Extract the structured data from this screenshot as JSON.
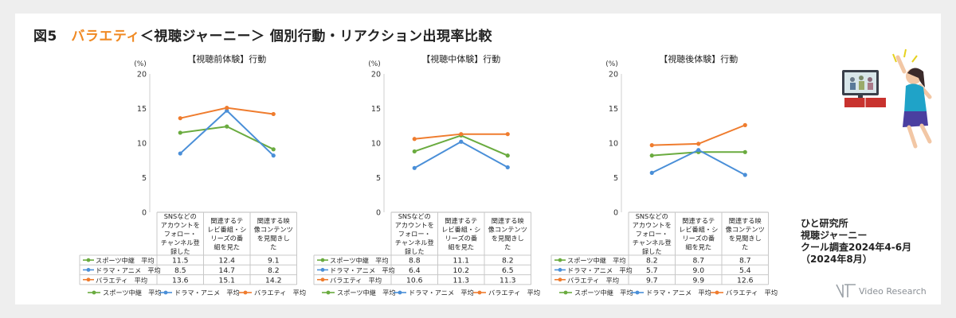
{
  "page_title": {
    "prefix": "図5",
    "accent": "バラエティ",
    "rest": "＜視聴ジャーニー＞ 個別行動・リアクション出現率比較"
  },
  "colors": {
    "sports": "#6aab3f",
    "drama": "#4a8fd8",
    "variety": "#ef7c2e",
    "accent": "#f08a24"
  },
  "chart_data": [
    {
      "type": "line",
      "title": "【視聴前体験】行動",
      "ylabel": "(%)",
      "ylim": [
        0,
        20
      ],
      "yticks": [
        "0",
        "5",
        "10",
        "15",
        "20"
      ],
      "categories": [
        [
          "SNSなどの",
          "アカウントを",
          "フォロー・",
          "チャンネル登",
          "録した"
        ],
        [
          "関連するテ",
          "レビ番組・シ",
          "リーズの番",
          "組を見た"
        ],
        [
          "関連する映",
          "像コンテンツ",
          "を見聞きし",
          "た"
        ]
      ],
      "series": [
        {
          "name": "スポーツ中継　平均",
          "color": "#6aab3f",
          "values": [
            11.5,
            12.4,
            9.1
          ],
          "labels": [
            "11.5",
            "12.4",
            "9.1"
          ]
        },
        {
          "name": "ドラマ・アニメ　平均",
          "color": "#4a8fd8",
          "values": [
            8.5,
            14.7,
            8.2
          ],
          "labels": [
            "8.5",
            "14.7",
            "8.2"
          ]
        },
        {
          "name": "バラエティ　平均",
          "color": "#ef7c2e",
          "values": [
            13.6,
            15.1,
            14.2
          ],
          "labels": [
            "13.6",
            "15.1",
            "14.2"
          ]
        }
      ]
    },
    {
      "type": "line",
      "title": "【視聴中体験】行動",
      "ylabel": "(%)",
      "ylim": [
        0,
        20
      ],
      "yticks": [
        "0",
        "5",
        "10",
        "15",
        "20"
      ],
      "categories": [
        [
          "SNSなどの",
          "アカウントを",
          "フォロー・",
          "チャンネル登",
          "録した"
        ],
        [
          "関連するテ",
          "レビ番組・シ",
          "リーズの番",
          "組を見た"
        ],
        [
          "関連する映",
          "像コンテンツ",
          "を見聞きし",
          "た"
        ]
      ],
      "series": [
        {
          "name": "スポーツ中継　平均",
          "color": "#6aab3f",
          "values": [
            8.8,
            11.1,
            8.2
          ],
          "labels": [
            "8.8",
            "11.1",
            "8.2"
          ]
        },
        {
          "name": "ドラマ・アニメ　平均",
          "color": "#4a8fd8",
          "values": [
            6.4,
            10.2,
            6.5
          ],
          "labels": [
            "6.4",
            "10.2",
            "6.5"
          ]
        },
        {
          "name": "バラエティ　平均",
          "color": "#ef7c2e",
          "values": [
            10.6,
            11.3,
            11.3
          ],
          "labels": [
            "10.6",
            "11.3",
            "11.3"
          ]
        }
      ]
    },
    {
      "type": "line",
      "title": "【視聴後体験】行動",
      "ylabel": "(%)",
      "ylim": [
        0,
        20
      ],
      "yticks": [
        "0",
        "5",
        "10",
        "15",
        "20"
      ],
      "categories": [
        [
          "SNSなどの",
          "アカウントを",
          "フォロー・",
          "チャンネル登",
          "録した"
        ],
        [
          "関連するテ",
          "レビ番組・シ",
          "リーズの番",
          "組を見た"
        ],
        [
          "関連する映",
          "像コンテンツ",
          "を見聞きし",
          "た"
        ]
      ],
      "series": [
        {
          "name": "スポーツ中継　平均",
          "color": "#6aab3f",
          "values": [
            8.2,
            8.7,
            8.7
          ],
          "labels": [
            "8.2",
            "8.7",
            "8.7"
          ]
        },
        {
          "name": "ドラマ・アニメ　平均",
          "color": "#4a8fd8",
          "values": [
            5.7,
            9.0,
            5.4
          ],
          "labels": [
            "5.7",
            "9.0",
            "5.4"
          ]
        },
        {
          "name": "バラエティ　平均",
          "color": "#ef7c2e",
          "values": [
            9.7,
            9.9,
            12.6
          ],
          "labels": [
            "9.7",
            "9.9",
            "12.6"
          ]
        }
      ]
    }
  ],
  "source": {
    "line1": "ひと研究所",
    "line2": "視聴ジャーニー",
    "line3": "クール調査2024年4-6月",
    "line4": "（2024年8月）"
  },
  "logo": {
    "text": "Video Research"
  },
  "illustration": {
    "icon": "tv-viewer-cheering-icon"
  }
}
